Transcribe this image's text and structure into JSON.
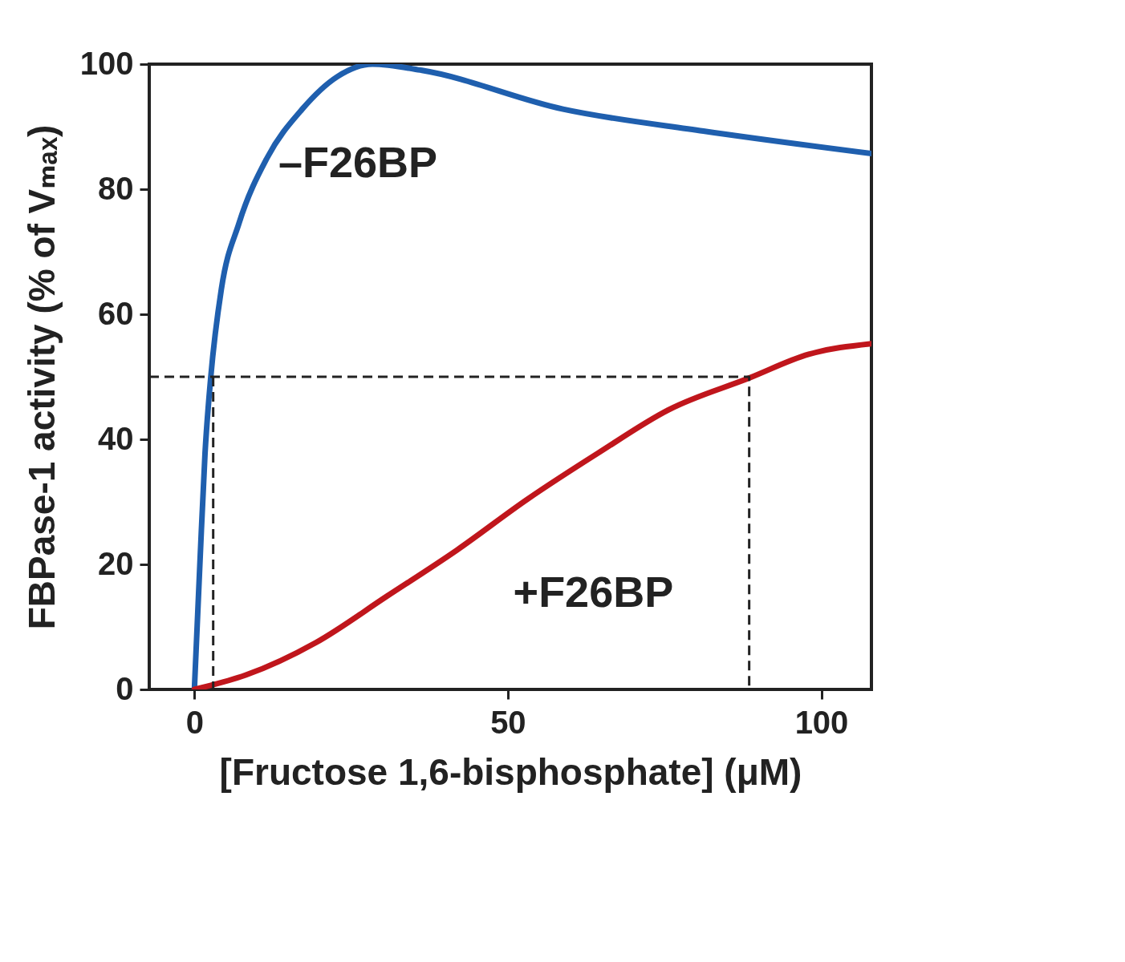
{
  "chart_data": {
    "type": "line",
    "xlabel": "[Fructose 1,6-bisphosphate] (μM)",
    "ylabel": "FBPase-1 activity (% of Vₘₐₓ)",
    "xlim": [
      -7.2,
      108
    ],
    "ylim": [
      0,
      100
    ],
    "xticks": [
      0,
      50,
      100
    ],
    "yticks": [
      0,
      20,
      40,
      60,
      80,
      100
    ],
    "series": [
      {
        "name": "–F26BP",
        "color": "#1f5fae",
        "x": [
          0,
          0.9,
          1.7,
          2.6,
          4.3,
          7.1,
          11.6,
          17.2,
          22.8,
          28.4,
          36.3,
          58.8,
          81.2,
          108
        ],
        "values": [
          0,
          20.6,
          37.8,
          49.8,
          64,
          74.5,
          85,
          92.8,
          98,
          100,
          99,
          92.8,
          89.3,
          85.7
        ]
      },
      {
        "name": "+F26BP",
        "color": "#c0161c",
        "x": [
          0,
          8.2,
          19.4,
          30.7,
          41.9,
          53.1,
          64.4,
          75.6,
          88.5,
          98,
          108
        ],
        "values": [
          0,
          2.3,
          7.5,
          14.9,
          22.3,
          30.4,
          37.8,
          44.7,
          49.8,
          53.6,
          55.3
        ]
      },
      {
        "color": "#222222",
        "line_style": "dashed",
        "x": [
          -7.2,
          88.5,
          88.5
        ],
        "values": [
          50,
          50,
          0
        ]
      },
      {
        "color": "#222222",
        "line_style": "dashed",
        "x": [
          3,
          3
        ],
        "values": [
          50,
          0
        ]
      }
    ]
  }
}
